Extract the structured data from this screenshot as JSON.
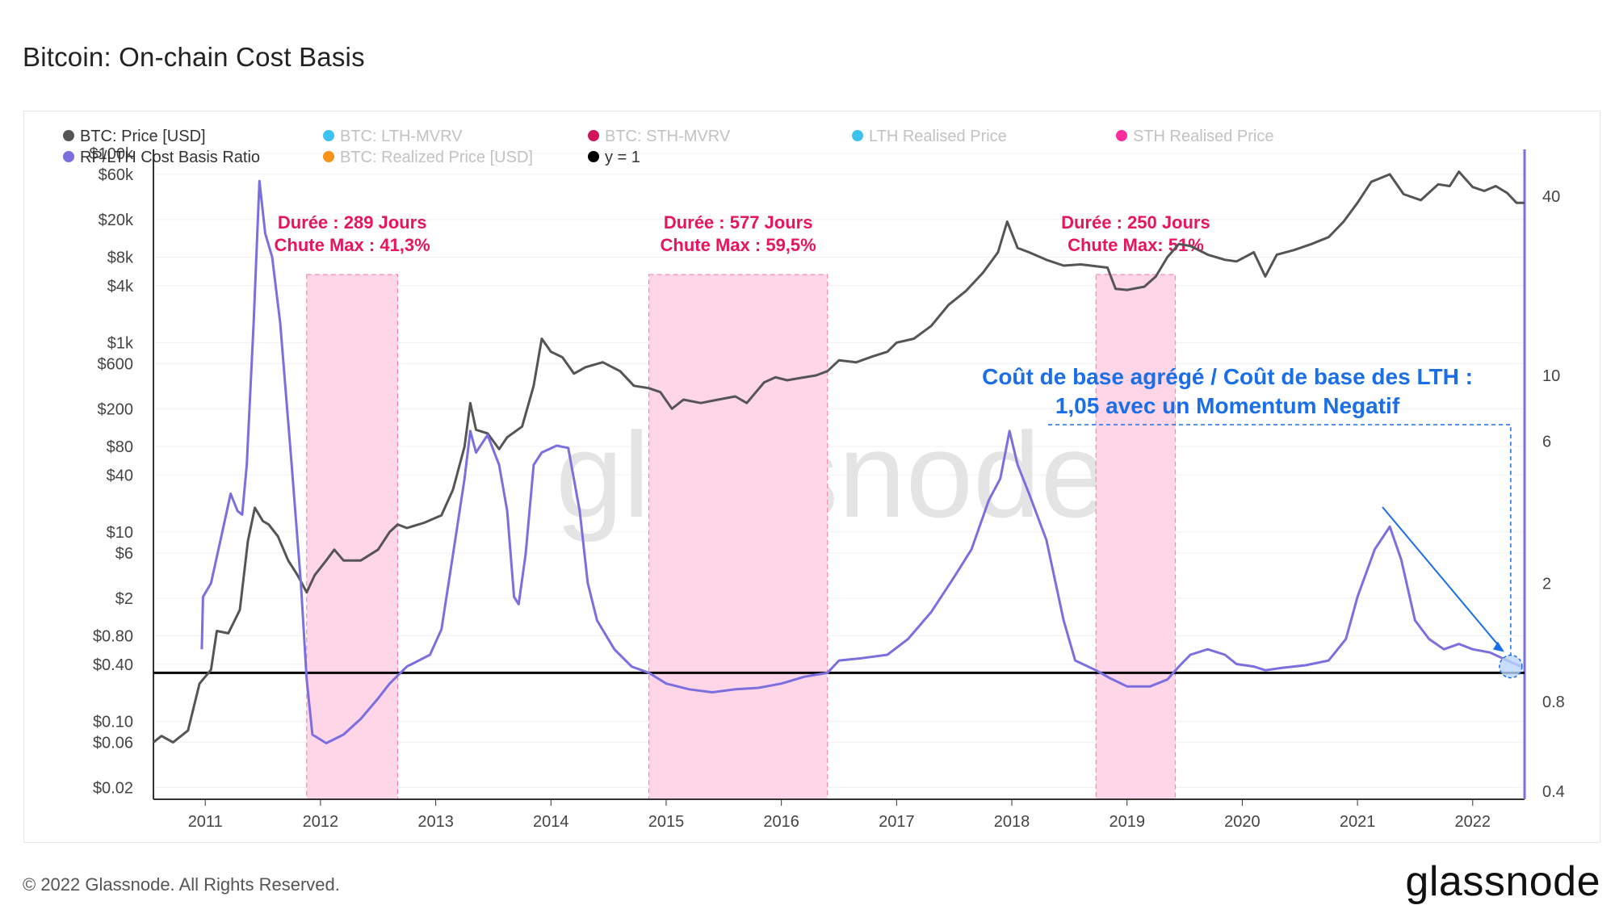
{
  "title": "Bitcoin: On-chain Cost Basis",
  "footer": "© 2022 Glassnode. All Rights Reserved.",
  "brand": "glassnode",
  "watermark": "glassnode",
  "chart_data": {
    "type": "line",
    "legend": [
      {
        "label": "BTC: Price [USD]",
        "color": "#555555",
        "active": true
      },
      {
        "label": "BTC: LTH-MVRV",
        "color": "#3cc2f0",
        "active": false
      },
      {
        "label": "BTC: STH-MVRV",
        "color": "#d1145a",
        "active": false
      },
      {
        "label": "LTH Realised Price",
        "color": "#3cc2f0",
        "active": false
      },
      {
        "label": "STH Realised Price",
        "color": "#ff2d9b",
        "active": false
      },
      {
        "label": "RP/LTH Cost Basis Ratio",
        "color": "#7b6fe0",
        "active": true
      },
      {
        "label": "BTC: Realized Price [USD]",
        "color": "#f7931a",
        "active": false
      },
      {
        "label": "y = 1",
        "color": "#000000",
        "active": true
      }
    ],
    "legend_placement": "top-left",
    "x_ticks": [
      "2011",
      "2012",
      "2013",
      "2014",
      "2015",
      "2016",
      "2017",
      "2018",
      "2019",
      "2020",
      "2021",
      "2022"
    ],
    "x_range": [
      2010.55,
      2022.45
    ],
    "y_left": {
      "scale": "log",
      "ticks": [
        {
          "v": 100000,
          "label": "$100k"
        },
        {
          "v": 60000,
          "label": "$60k"
        },
        {
          "v": 20000,
          "label": "$20k"
        },
        {
          "v": 8000,
          "label": "$8k"
        },
        {
          "v": 4000,
          "label": "$4k"
        },
        {
          "v": 1000,
          "label": "$1k"
        },
        {
          "v": 600,
          "label": "$600"
        },
        {
          "v": 200,
          "label": "$200"
        },
        {
          "v": 80,
          "label": "$80"
        },
        {
          "v": 40,
          "label": "$40"
        },
        {
          "v": 10,
          "label": "$10"
        },
        {
          "v": 6,
          "label": "$6"
        },
        {
          "v": 2,
          "label": "$2"
        },
        {
          "v": 0.8,
          "label": "$0.80"
        },
        {
          "v": 0.4,
          "label": "$0.40"
        },
        {
          "v": 0.1,
          "label": "$0.10"
        },
        {
          "v": 0.06,
          "label": "$0.06"
        },
        {
          "v": 0.02,
          "label": "$0.02"
        }
      ]
    },
    "y_right": {
      "scale": "log",
      "ticks": [
        {
          "v": 40,
          "label": "40"
        },
        {
          "v": 10,
          "label": "10"
        },
        {
          "v": 6,
          "label": "6"
        },
        {
          "v": 2,
          "label": "2"
        },
        {
          "v": 0.8,
          "label": "0.8"
        },
        {
          "v": 0.4,
          "label": "0.4"
        }
      ]
    },
    "shaded_regions": [
      {
        "x_start": 2011.88,
        "x_end": 2012.67,
        "label1": "Durée : 289 Jours",
        "label2": "Chute Max : 41,3%"
      },
      {
        "x_start": 2014.85,
        "x_end": 2016.4,
        "label1": "Durée : 577 Jours",
        "label2": "Chute Max : 59,5%"
      },
      {
        "x_start": 2018.73,
        "x_end": 2019.42,
        "label1": "Durée : 250 Jours",
        "label2": "Chute Max: 51%"
      }
    ],
    "annotation": {
      "line1": "Coût de base agrégé / Coût de base des LTH :",
      "line2": "1,05 avec un Momentum Negatif",
      "x": 2022.33,
      "value": 1.05,
      "color": "#1a6fe8"
    },
    "series": [
      {
        "name": "BTC: Price [USD]",
        "axis": "left",
        "color": "#555555",
        "points": [
          [
            2010.55,
            0.06
          ],
          [
            2010.62,
            0.07
          ],
          [
            2010.72,
            0.06
          ],
          [
            2010.85,
            0.08
          ],
          [
            2010.95,
            0.25
          ],
          [
            2011.05,
            0.35
          ],
          [
            2011.1,
            0.9
          ],
          [
            2011.2,
            0.85
          ],
          [
            2011.3,
            1.5
          ],
          [
            2011.37,
            8
          ],
          [
            2011.43,
            18
          ],
          [
            2011.5,
            13
          ],
          [
            2011.55,
            12
          ],
          [
            2011.63,
            9
          ],
          [
            2011.72,
            5
          ],
          [
            2011.8,
            3.5
          ],
          [
            2011.88,
            2.3
          ],
          [
            2011.95,
            3.5
          ],
          [
            2012.05,
            5
          ],
          [
            2012.12,
            6.5
          ],
          [
            2012.2,
            5
          ],
          [
            2012.35,
            5
          ],
          [
            2012.5,
            6.5
          ],
          [
            2012.6,
            10
          ],
          [
            2012.67,
            12
          ],
          [
            2012.75,
            11
          ],
          [
            2012.9,
            12.5
          ],
          [
            2013.05,
            15
          ],
          [
            2013.15,
            28
          ],
          [
            2013.25,
            80
          ],
          [
            2013.3,
            230
          ],
          [
            2013.35,
            120
          ],
          [
            2013.45,
            110
          ],
          [
            2013.55,
            75
          ],
          [
            2013.62,
            100
          ],
          [
            2013.75,
            130
          ],
          [
            2013.85,
            350
          ],
          [
            2013.92,
            1100
          ],
          [
            2014.0,
            800
          ],
          [
            2014.1,
            700
          ],
          [
            2014.2,
            470
          ],
          [
            2014.3,
            550
          ],
          [
            2014.45,
            620
          ],
          [
            2014.6,
            500
          ],
          [
            2014.72,
            350
          ],
          [
            2014.85,
            330
          ],
          [
            2014.95,
            300
          ],
          [
            2015.05,
            200
          ],
          [
            2015.15,
            250
          ],
          [
            2015.3,
            230
          ],
          [
            2015.45,
            250
          ],
          [
            2015.6,
            270
          ],
          [
            2015.7,
            230
          ],
          [
            2015.85,
            380
          ],
          [
            2015.95,
            430
          ],
          [
            2016.05,
            400
          ],
          [
            2016.15,
            420
          ],
          [
            2016.3,
            450
          ],
          [
            2016.4,
            500
          ],
          [
            2016.5,
            650
          ],
          [
            2016.65,
            620
          ],
          [
            2016.8,
            720
          ],
          [
            2016.92,
            800
          ],
          [
            2017.0,
            1000
          ],
          [
            2017.15,
            1100
          ],
          [
            2017.3,
            1500
          ],
          [
            2017.45,
            2500
          ],
          [
            2017.6,
            3500
          ],
          [
            2017.75,
            5500
          ],
          [
            2017.88,
            9000
          ],
          [
            2017.96,
            19000
          ],
          [
            2018.05,
            10000
          ],
          [
            2018.15,
            9000
          ],
          [
            2018.3,
            7500
          ],
          [
            2018.45,
            6500
          ],
          [
            2018.6,
            6700
          ],
          [
            2018.73,
            6400
          ],
          [
            2018.83,
            6200
          ],
          [
            2018.9,
            3700
          ],
          [
            2019.0,
            3600
          ],
          [
            2019.15,
            3900
          ],
          [
            2019.25,
            5000
          ],
          [
            2019.35,
            8000
          ],
          [
            2019.45,
            11000
          ],
          [
            2019.55,
            10500
          ],
          [
            2019.7,
            8500
          ],
          [
            2019.85,
            7500
          ],
          [
            2019.95,
            7200
          ],
          [
            2020.1,
            9000
          ],
          [
            2020.2,
            5000
          ],
          [
            2020.3,
            8500
          ],
          [
            2020.45,
            9500
          ],
          [
            2020.6,
            11000
          ],
          [
            2020.75,
            13000
          ],
          [
            2020.88,
            19000
          ],
          [
            2021.0,
            30000
          ],
          [
            2021.12,
            50000
          ],
          [
            2021.28,
            60000
          ],
          [
            2021.4,
            37000
          ],
          [
            2021.55,
            32000
          ],
          [
            2021.7,
            47000
          ],
          [
            2021.8,
            45000
          ],
          [
            2021.88,
            64000
          ],
          [
            2022.0,
            44000
          ],
          [
            2022.1,
            40000
          ],
          [
            2022.2,
            45000
          ],
          [
            2022.3,
            38000
          ],
          [
            2022.38,
            30000
          ],
          [
            2022.45,
            30000
          ]
        ]
      },
      {
        "name": "RP/LTH Cost Basis Ratio",
        "axis": "right",
        "color": "#7b6fe0",
        "points": [
          [
            2010.97,
            1.2
          ],
          [
            2010.98,
            1.8
          ],
          [
            2011.05,
            2.0
          ],
          [
            2011.15,
            3.0
          ],
          [
            2011.22,
            4.0
          ],
          [
            2011.28,
            3.5
          ],
          [
            2011.32,
            3.4
          ],
          [
            2011.36,
            5.0
          ],
          [
            2011.42,
            15
          ],
          [
            2011.47,
            45
          ],
          [
            2011.52,
            30
          ],
          [
            2011.58,
            25
          ],
          [
            2011.65,
            15
          ],
          [
            2011.75,
            5
          ],
          [
            2011.83,
            2
          ],
          [
            2011.88,
            0.95
          ],
          [
            2011.93,
            0.62
          ],
          [
            2012.05,
            0.58
          ],
          [
            2012.2,
            0.62
          ],
          [
            2012.35,
            0.7
          ],
          [
            2012.5,
            0.82
          ],
          [
            2012.6,
            0.92
          ],
          [
            2012.75,
            1.05
          ],
          [
            2012.95,
            1.15
          ],
          [
            2013.05,
            1.4
          ],
          [
            2013.15,
            2.5
          ],
          [
            2013.25,
            4.5
          ],
          [
            2013.3,
            6.5
          ],
          [
            2013.35,
            5.5
          ],
          [
            2013.45,
            6.3
          ],
          [
            2013.55,
            5.0
          ],
          [
            2013.62,
            3.5
          ],
          [
            2013.68,
            1.8
          ],
          [
            2013.72,
            1.7
          ],
          [
            2013.78,
            2.5
          ],
          [
            2013.85,
            5.0
          ],
          [
            2013.92,
            5.5
          ],
          [
            2014.05,
            5.8
          ],
          [
            2014.15,
            5.7
          ],
          [
            2014.25,
            3.5
          ],
          [
            2014.32,
            2.0
          ],
          [
            2014.4,
            1.5
          ],
          [
            2014.55,
            1.2
          ],
          [
            2014.7,
            1.05
          ],
          [
            2014.85,
            1.0
          ],
          [
            2015.0,
            0.92
          ],
          [
            2015.2,
            0.88
          ],
          [
            2015.4,
            0.86
          ],
          [
            2015.6,
            0.88
          ],
          [
            2015.8,
            0.89
          ],
          [
            2016.0,
            0.92
          ],
          [
            2016.2,
            0.97
          ],
          [
            2016.4,
            1.0
          ],
          [
            2016.5,
            1.1
          ],
          [
            2016.7,
            1.12
          ],
          [
            2016.92,
            1.15
          ],
          [
            2017.1,
            1.3
          ],
          [
            2017.3,
            1.6
          ],
          [
            2017.5,
            2.1
          ],
          [
            2017.65,
            2.6
          ],
          [
            2017.8,
            3.8
          ],
          [
            2017.9,
            4.5
          ],
          [
            2017.98,
            6.5
          ],
          [
            2018.05,
            5.0
          ],
          [
            2018.15,
            4.0
          ],
          [
            2018.3,
            2.8
          ],
          [
            2018.45,
            1.5
          ],
          [
            2018.55,
            1.1
          ],
          [
            2018.73,
            1.02
          ],
          [
            2018.85,
            0.96
          ],
          [
            2019.0,
            0.9
          ],
          [
            2019.2,
            0.9
          ],
          [
            2019.35,
            0.95
          ],
          [
            2019.45,
            1.05
          ],
          [
            2019.55,
            1.15
          ],
          [
            2019.7,
            1.2
          ],
          [
            2019.85,
            1.15
          ],
          [
            2019.95,
            1.07
          ],
          [
            2020.1,
            1.05
          ],
          [
            2020.2,
            1.02
          ],
          [
            2020.35,
            1.04
          ],
          [
            2020.55,
            1.06
          ],
          [
            2020.75,
            1.1
          ],
          [
            2020.9,
            1.3
          ],
          [
            2021.0,
            1.8
          ],
          [
            2021.15,
            2.6
          ],
          [
            2021.28,
            3.1
          ],
          [
            2021.38,
            2.4
          ],
          [
            2021.5,
            1.5
          ],
          [
            2021.62,
            1.3
          ],
          [
            2021.75,
            1.2
          ],
          [
            2021.88,
            1.25
          ],
          [
            2022.0,
            1.2
          ],
          [
            2022.15,
            1.17
          ],
          [
            2022.3,
            1.1
          ],
          [
            2022.42,
            1.05
          ]
        ]
      }
    ],
    "reference_line": {
      "name": "y = 1",
      "y": 1.0,
      "axis": "right",
      "color": "#000000"
    }
  }
}
